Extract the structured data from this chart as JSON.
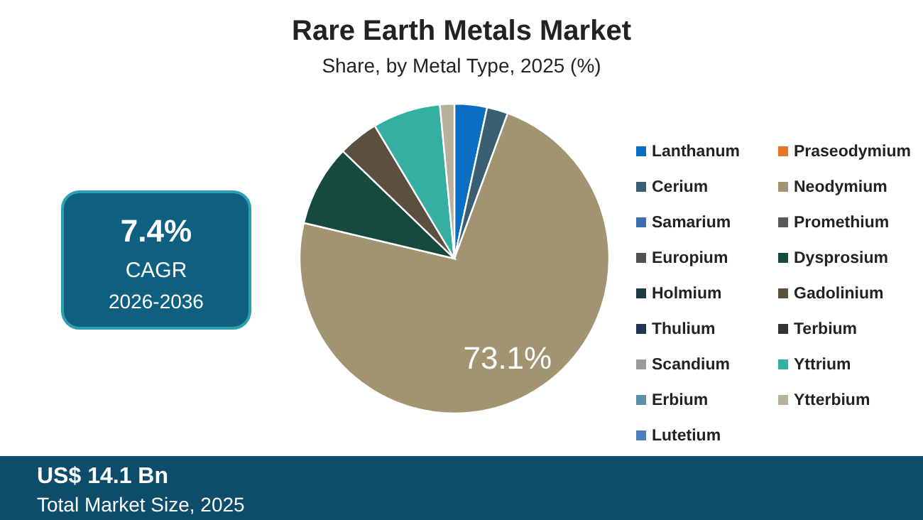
{
  "chart_data": {
    "type": "pie",
    "title": "Rare Earth Metals Market",
    "subtitle": "Share, by Metal Type, 2025 (%)",
    "categories": [
      "Lanthanum",
      "Praseodymium",
      "Cerium",
      "Neodymium",
      "Samarium",
      "Promethium",
      "Europium",
      "Dysprosium",
      "Holmium",
      "Gadolinium",
      "Thulium",
      "Terbium",
      "Scandium",
      "Yttrium",
      "Erbium",
      "Ytterbium",
      "Lutetium"
    ],
    "values": [
      3.4,
      0,
      2.2,
      73.1,
      0,
      0,
      0,
      8.5,
      0,
      4.2,
      0,
      0,
      0,
      7.1,
      0,
      1.5,
      0
    ],
    "colors": [
      "#0a6fc2",
      "#e8742a",
      "#3a5f73",
      "#a39471",
      "#3c6fb0",
      "#5a5a5a",
      "#505050",
      "#174a3e",
      "#1f3c44",
      "#5b5040",
      "#1e3556",
      "#333333",
      "#9a9a9a",
      "#35b0a0",
      "#5b91a8",
      "#b7b09a",
      "#4a7fc0"
    ],
    "value_labels": [
      null,
      null,
      null,
      "73.1%",
      null,
      null,
      null,
      null,
      null,
      null,
      null,
      null,
      null,
      null,
      null,
      null,
      null
    ],
    "legend": "right",
    "annotations": [
      "7.4%",
      "CAGR",
      "2026-2036",
      "US$ 14.1 Bn",
      "Total Market Size, 2025"
    ]
  }
}
